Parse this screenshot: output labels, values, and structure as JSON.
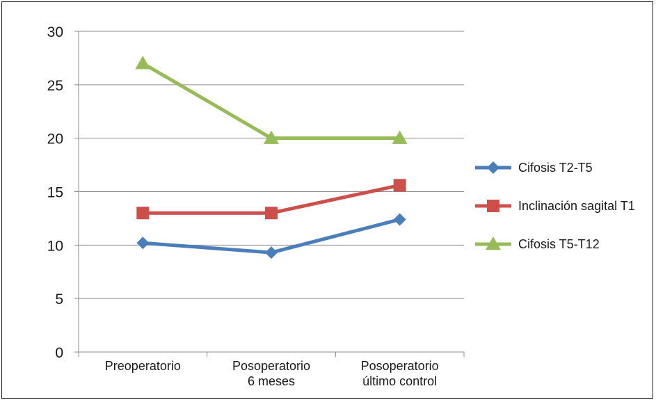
{
  "chart_data": {
    "type": "line",
    "title": "",
    "xlabel": "",
    "ylabel": "",
    "categories": [
      [
        "Preoperatorio"
      ],
      [
        "Posoperatorio",
        "6 meses"
      ],
      [
        "Posoperatorio",
        "último control"
      ]
    ],
    "ylim": [
      0,
      30
    ],
    "yticks": [
      "0",
      "5",
      "10",
      "15",
      "20",
      "25",
      "30"
    ],
    "grid": true,
    "legend_position": "right",
    "series": [
      {
        "name": "Cifosis T2-T5",
        "values": [
          10.2,
          9.3,
          12.4
        ],
        "color": "#4a7ebb",
        "marker": "diamond"
      },
      {
        "name": "Inclinación sagital T1",
        "values": [
          13.0,
          13.0,
          15.6
        ],
        "color": "#cd4f4b",
        "marker": "square"
      },
      {
        "name": "Cifosis T5-T12",
        "values": [
          27.0,
          20.0,
          20.0
        ],
        "color": "#98bb59",
        "marker": "triangle"
      }
    ]
  }
}
